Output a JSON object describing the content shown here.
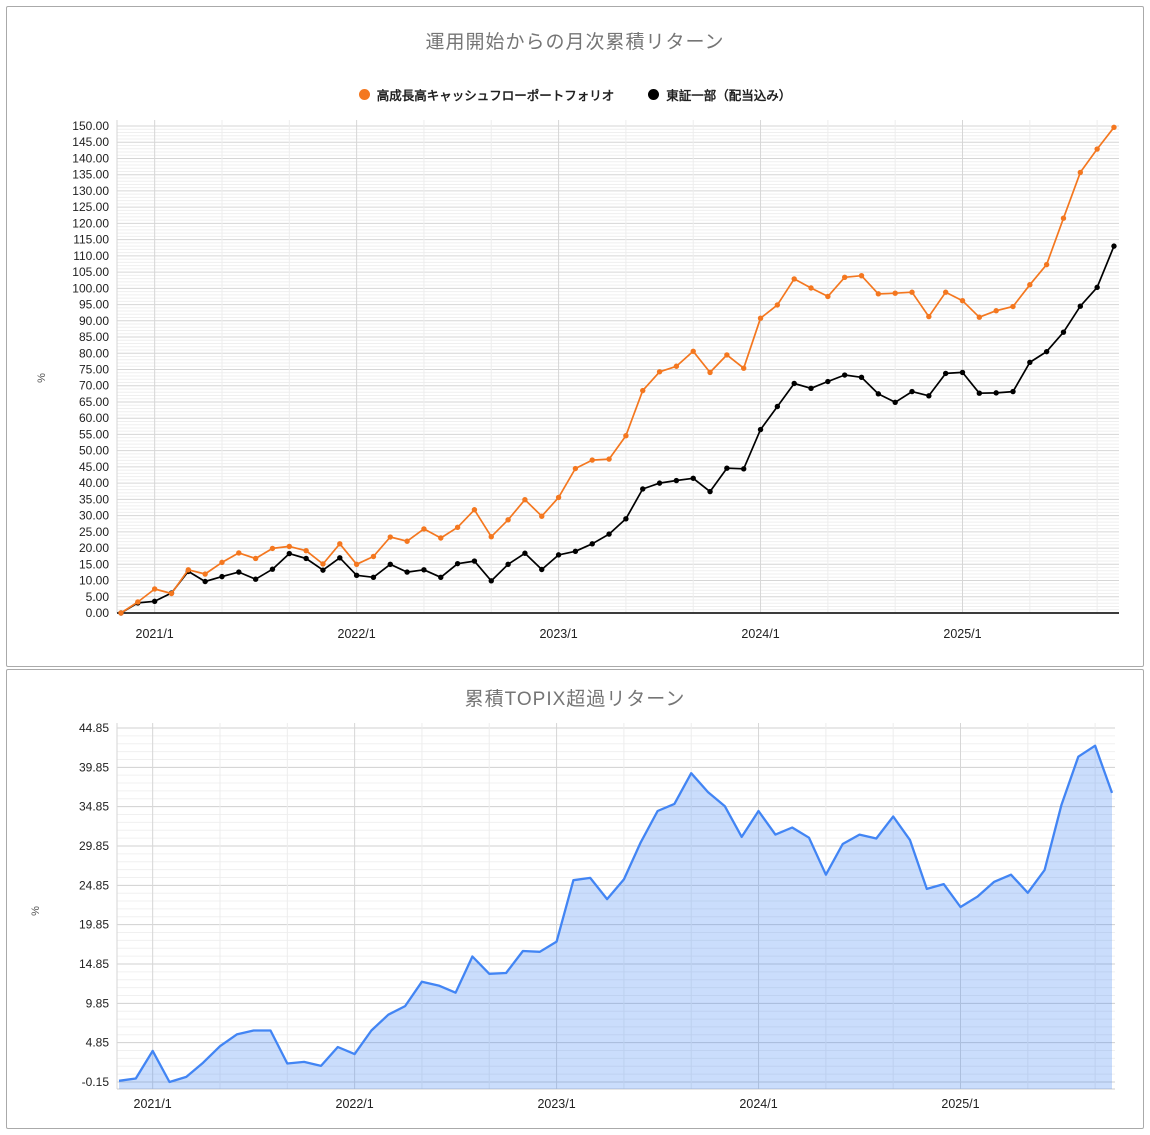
{
  "chart_data": [
    {
      "type": "line",
      "title": "運用開始からの月次累積リターン",
      "ylabel": "%",
      "ylim": [
        0,
        150
      ],
      "ytick_step": 5,
      "ytick_format": "2dp",
      "grid": true,
      "legend_position": "top",
      "x_months": [
        "2020/11",
        "2020/12",
        "2021/1",
        "2021/2",
        "2021/3",
        "2021/4",
        "2021/5",
        "2021/6",
        "2021/7",
        "2021/8",
        "2021/9",
        "2021/10",
        "2021/11",
        "2021/12",
        "2022/1",
        "2022/2",
        "2022/3",
        "2022/4",
        "2022/5",
        "2022/6",
        "2022/7",
        "2022/8",
        "2022/9",
        "2022/10",
        "2022/11",
        "2022/12",
        "2023/1",
        "2023/2",
        "2023/3",
        "2023/4",
        "2023/5",
        "2023/6",
        "2023/7",
        "2023/8",
        "2023/9",
        "2023/10",
        "2023/11",
        "2023/12",
        "2024/1",
        "2024/2",
        "2024/3",
        "2024/4",
        "2024/5",
        "2024/6",
        "2024/7",
        "2024/8",
        "2024/9",
        "2024/10",
        "2024/11",
        "2024/12",
        "2025/1",
        "2025/2",
        "2025/3",
        "2025/4",
        "2025/5",
        "2025/6",
        "2025/7",
        "2025/8",
        "2025/9",
        "2025/10"
      ],
      "x_tick_labels": [
        "2021/1",
        "2022/1",
        "2023/1",
        "2024/1",
        "2025/1"
      ],
      "x_tick_indices": [
        2,
        14,
        26,
        38,
        50
      ],
      "series": [
        {
          "name": "高成長高キャッシュフローポートフォリオ",
          "color": "#f4771f",
          "values": [
            0,
            3.4,
            7.4,
            6.0,
            13.3,
            12.0,
            15.6,
            18.5,
            16.8,
            19.9,
            20.5,
            19.2,
            15.1,
            21.3,
            15.0,
            17.4,
            23.4,
            22.1,
            25.9,
            23.1,
            26.4,
            31.8,
            23.5,
            28.7,
            34.9,
            29.8,
            35.6,
            44.5,
            47.1,
            47.4,
            54.6,
            68.5,
            74.3,
            76.0,
            80.6,
            74.1,
            79.5,
            75.4,
            90.8,
            94.9,
            102.9,
            100.1,
            97.5,
            103.4,
            103.9,
            98.3,
            98.5,
            98.8,
            91.3,
            98.8,
            96.2,
            91.1,
            93.1,
            94.4,
            101.1,
            107.3,
            121.6,
            135.7,
            142.9,
            149.6
          ]
        },
        {
          "name": "東証一部（配当込み）",
          "color": "#000000",
          "values": [
            0,
            3.1,
            3.6,
            6.15,
            12.8,
            9.7,
            11.2,
            12.6,
            10.4,
            13.5,
            18.3,
            16.8,
            13.2,
            17.0,
            11.6,
            11.0,
            15.0,
            12.6,
            13.3,
            11.0,
            15.2,
            16.0,
            9.9,
            15.0,
            18.4,
            13.4,
            17.9,
            19.0,
            21.3,
            24.3,
            29.0,
            38.2,
            40.0,
            40.8,
            41.5,
            37.4,
            44.6,
            44.4,
            56.5,
            63.6,
            70.7,
            69.2,
            71.3,
            73.3,
            72.6,
            67.5,
            64.9,
            68.2,
            66.9,
            73.8,
            74.1,
            67.7,
            67.8,
            68.2,
            77.2,
            80.5,
            86.5,
            94.5,
            100.3,
            113.0
          ]
        }
      ]
    },
    {
      "type": "area",
      "title": "累積TOPIX超過リターン",
      "ylabel": "%",
      "line_color": "#4285f4",
      "fill_color": "rgba(66,133,244,0.28)",
      "yticks": [
        -0.15,
        4.85,
        9.85,
        14.85,
        19.85,
        24.85,
        29.85,
        34.85,
        39.85,
        44.85
      ],
      "ylim": [
        -1.1,
        45.5
      ],
      "grid": true,
      "x_tick_labels": [
        "2021/1",
        "2022/1",
        "2023/1",
        "2024/1",
        "2025/1"
      ],
      "x_tick_indices": [
        2,
        14,
        26,
        38,
        50
      ],
      "values": [
        0,
        0.3,
        3.8,
        -0.15,
        0.5,
        2.3,
        4.4,
        5.9,
        6.4,
        6.4,
        2.2,
        2.4,
        1.9,
        4.3,
        3.4,
        6.4,
        8.4,
        9.5,
        12.6,
        12.1,
        11.2,
        15.8,
        13.6,
        13.7,
        16.5,
        16.4,
        17.7,
        25.5,
        25.8,
        23.1,
        25.6,
        30.3,
        34.3,
        35.2,
        39.1,
        36.7,
        34.9,
        31.0,
        34.3,
        31.3,
        32.2,
        30.9,
        26.2,
        30.1,
        31.3,
        30.8,
        33.6,
        30.6,
        24.4,
        25.0,
        22.1,
        23.4,
        25.3,
        26.2,
        23.9,
        26.8,
        35.1,
        41.2,
        42.6,
        36.6
      ]
    }
  ]
}
